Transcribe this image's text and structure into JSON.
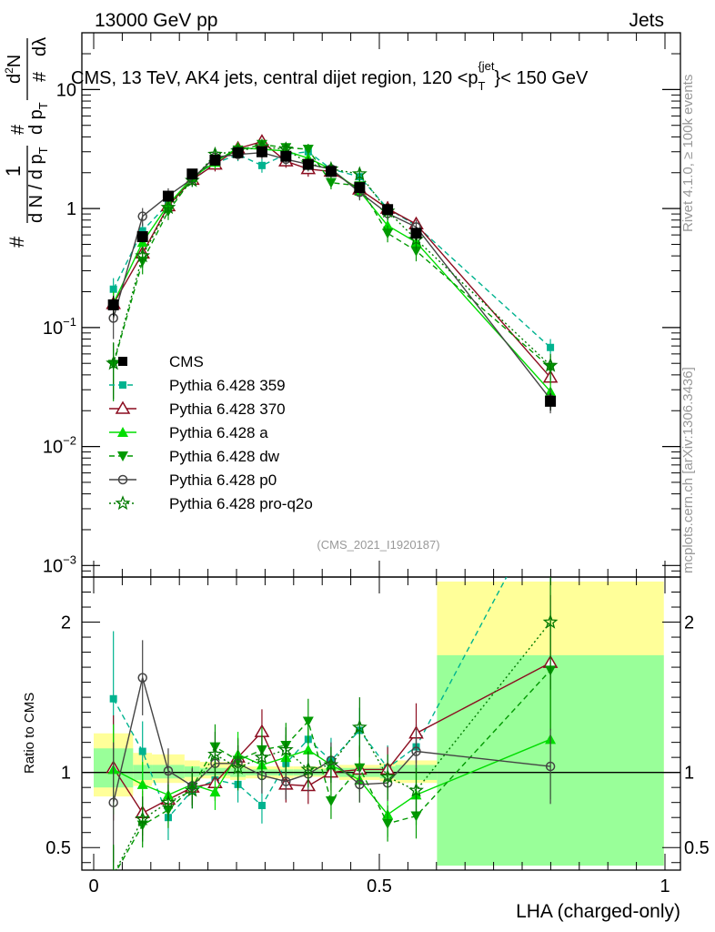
{
  "header": {
    "left": "13000 GeV pp",
    "right": "Jets"
  },
  "side_labels": {
    "rivet": "Rivet 4.1.0, ≥ 100k events",
    "mcplots": "mcplots.cern.ch [arXiv:1306.3436]"
  },
  "watermark": "(CMS_2021_I1920187)",
  "colors": {
    "cms": "#000000",
    "p359": "#00b38f",
    "p370": "#8b0c1f",
    "a": "#00dd00",
    "dw": "#009900",
    "p0": "#444444",
    "proq2o": "#007a00",
    "band_yellow": "#ffff99",
    "band_green": "#99ff99"
  },
  "chart_data": [
    {
      "type": "line",
      "panel": "main",
      "title": "CMS, 13 TeV, AK4 jets, central dijet region, 120 < p_T^{jet} < 150 GeV",
      "title_parts": {
        "main": "CMS, 13 TeV, AK4 jets, central dijet region, 120 <p",
        "sub": "T",
        "sup": "{jet",
        "tail": "}< 150 GeV"
      },
      "ylabel": "1/N dN/dp_T d^2N/dp_T dλ",
      "ylabel_parts": {
        "hash": "#",
        "one": "1",
        "dn": "d N / d p",
        "t": "T",
        "d2n": "d",
        "sq": "2",
        "n": "N",
        "dp": "d p",
        "dl": "dλ"
      },
      "yscale": "log",
      "ylim": [
        0.0008,
        30
      ],
      "x": [
        0.0345,
        0.0855,
        0.1305,
        0.1725,
        0.2125,
        0.2525,
        0.2945,
        0.3365,
        0.3755,
        0.4155,
        0.4655,
        0.5145,
        0.5645,
        0.7995
      ],
      "ytick_labels": [
        {
          "value": 0.001,
          "base": "10",
          "exp": "−3"
        },
        {
          "value": 0.01,
          "base": "10",
          "exp": "−2"
        },
        {
          "value": 0.1,
          "base": "10",
          "exp": "−1"
        },
        {
          "value": 1,
          "base": "1",
          "exp": ""
        },
        {
          "value": 10,
          "base": "10",
          "exp": ""
        }
      ],
      "legend": {
        "position": "center-left"
      },
      "series": [
        {
          "name": "CMS",
          "key": "cms",
          "style": "none",
          "marker": "square",
          "values": [
            0.155,
            0.58,
            1.27,
            1.95,
            2.55,
            2.95,
            3.0,
            2.75,
            2.35,
            2.05,
            1.5,
            0.98,
            0.62,
            0.024
          ],
          "errors": [
            0.03,
            0.06,
            0.1,
            0.15,
            0.2,
            0.2,
            0.2,
            0.2,
            0.2,
            0.15,
            0.15,
            0.1,
            0.08,
            0.004
          ]
        },
        {
          "name": "Pythia 6.428 359",
          "key": "p359",
          "style": "dashed",
          "marker": "filled-square-small",
          "values": [
            0.21,
            0.65,
            1.1,
            1.72,
            2.4,
            2.85,
            2.3,
            2.85,
            3.0,
            2.15,
            1.85,
            1.0,
            0.72,
            0.068
          ],
          "errors": [
            0.05,
            0.1,
            0.15,
            0.2,
            0.3,
            0.35,
            0.3,
            0.35,
            0.35,
            0.25,
            0.25,
            0.15,
            0.1,
            0.012
          ]
        },
        {
          "name": "Pythia 6.428 370",
          "key": "p370",
          "style": "solid",
          "marker": "open-triangle",
          "values": [
            0.158,
            0.42,
            1.05,
            1.75,
            2.35,
            3.2,
            3.65,
            2.5,
            2.15,
            2.05,
            1.45,
            1.0,
            0.74,
            0.038
          ],
          "errors": [
            0.04,
            0.08,
            0.15,
            0.2,
            0.3,
            0.35,
            0.4,
            0.3,
            0.3,
            0.25,
            0.2,
            0.15,
            0.1,
            0.01
          ]
        },
        {
          "name": "Pythia 6.428 a",
          "key": "a",
          "style": "solid",
          "marker": "filled-triangle",
          "values": [
            0.16,
            0.52,
            1.08,
            1.82,
            2.45,
            3.25,
            3.15,
            3.05,
            2.65,
            2.15,
            1.4,
            0.72,
            0.52,
            0.029
          ],
          "errors": [
            0.04,
            0.1,
            0.15,
            0.2,
            0.3,
            0.35,
            0.35,
            0.35,
            0.3,
            0.25,
            0.2,
            0.12,
            0.1,
            0.009
          ]
        },
        {
          "name": "Pythia 6.428 dw",
          "key": "dw",
          "style": "dashed",
          "marker": "filled-triangle-down",
          "values": [
            0.049,
            0.36,
            0.95,
            1.78,
            2.55,
            3.1,
            3.45,
            3.25,
            3.15,
            1.65,
            1.55,
            0.62,
            0.44,
            0.046
          ],
          "errors": [
            0.025,
            0.08,
            0.15,
            0.2,
            0.3,
            0.35,
            0.4,
            0.35,
            0.35,
            0.2,
            0.2,
            0.1,
            0.08,
            0.012
          ]
        },
        {
          "name": "Pythia 6.428 p0",
          "key": "p0",
          "style": "solid",
          "marker": "open-circle",
          "values": [
            0.12,
            0.86,
            1.28,
            1.78,
            2.7,
            2.85,
            2.95,
            2.6,
            2.35,
            2.15,
            1.37,
            0.91,
            0.7,
            0.025
          ],
          "errors": [
            0.04,
            0.15,
            0.2,
            0.2,
            0.3,
            0.3,
            0.35,
            0.3,
            0.3,
            0.25,
            0.2,
            0.12,
            0.1,
            0.006
          ]
        },
        {
          "name": "Pythia 6.428 pro-q2o",
          "key": "proq2o",
          "style": "dotted",
          "marker": "star",
          "values": [
            0.05,
            0.4,
            1.02,
            1.72,
            2.85,
            3.05,
            3.3,
            3.15,
            2.4,
            2.15,
            1.95,
            0.95,
            0.55,
            0.048
          ],
          "errors": [
            0.025,
            0.08,
            0.15,
            0.2,
            0.3,
            0.35,
            0.4,
            0.35,
            0.3,
            0.25,
            0.25,
            0.15,
            0.1,
            0.012
          ]
        }
      ]
    },
    {
      "type": "line",
      "panel": "ratio",
      "ylabel": "Ratio to CMS",
      "xlabel": "LHA (charged-only)",
      "ylim": [
        0.35,
        2.3
      ],
      "xlim": [
        -0.01,
        1.0
      ],
      "xticks": [
        {
          "value": 0,
          "label": "0"
        },
        {
          "value": 0.5,
          "label": "0.5"
        },
        {
          "value": 1,
          "label": "1"
        }
      ],
      "yticks": [
        {
          "value": 0.5,
          "label": "0.5"
        },
        {
          "value": 1,
          "label": "1"
        },
        {
          "value": 2,
          "label": "2"
        }
      ],
      "bins": [
        [
          0.0,
          0.069
        ],
        [
          0.069,
          0.102
        ],
        [
          0.102,
          0.159
        ],
        [
          0.159,
          0.186
        ],
        [
          0.186,
          0.239
        ],
        [
          0.239,
          0.266
        ],
        [
          0.266,
          0.323
        ],
        [
          0.323,
          0.35
        ],
        [
          0.35,
          0.401
        ],
        [
          0.401,
          0.43
        ],
        [
          0.43,
          0.501
        ],
        [
          0.501,
          0.528
        ],
        [
          0.528,
          0.601
        ],
        [
          0.601,
          0.998
        ]
      ],
      "band_yellow": [
        [
          0.84,
          1.26
        ],
        [
          0.91,
          1.13
        ],
        [
          0.93,
          1.12
        ],
        [
          0.94,
          1.08
        ],
        [
          0.96,
          1.07
        ],
        [
          0.95,
          1.06
        ],
        [
          0.96,
          1.04
        ],
        [
          0.96,
          1.04
        ],
        [
          0.97,
          1.04
        ],
        [
          0.97,
          1.03
        ],
        [
          0.95,
          1.05
        ],
        [
          0.94,
          1.06
        ],
        [
          0.93,
          1.08
        ],
        [
          0.38,
          2.27
        ]
      ],
      "band_green": [
        [
          0.9,
          1.16
        ],
        [
          0.95,
          1.05
        ],
        [
          0.96,
          1.05
        ],
        [
          0.97,
          1.04
        ],
        [
          0.98,
          1.03
        ],
        [
          0.97,
          1.03
        ],
        [
          0.98,
          1.02
        ],
        [
          0.98,
          1.02
        ],
        [
          0.98,
          1.02
        ],
        [
          0.98,
          1.02
        ],
        [
          0.97,
          1.03
        ],
        [
          0.96,
          1.04
        ],
        [
          0.95,
          1.05
        ],
        [
          0.38,
          1.78
        ]
      ],
      "series": [
        {
          "key": "p359",
          "values": [
            1.49,
            1.14,
            0.7,
            0.88,
            0.95,
            0.92,
            0.78,
            1.06,
            1.22,
            1.08,
            1.28,
            1.03,
            1.17,
            2.85
          ],
          "errors": [
            0.45,
            0.2,
            0.15,
            0.12,
            0.12,
            0.12,
            0.12,
            0.12,
            0.15,
            0.15,
            0.15,
            0.15,
            0.15,
            0.5
          ]
        },
        {
          "key": "p370",
          "values": [
            1.03,
            0.73,
            0.82,
            0.9,
            0.93,
            1.1,
            1.27,
            0.92,
            0.91,
            1.0,
            1.02,
            1.02,
            1.26,
            1.73
          ],
          "errors": [
            0.35,
            0.15,
            0.12,
            0.12,
            0.12,
            0.12,
            0.15,
            0.12,
            0.12,
            0.12,
            0.15,
            0.15,
            0.2,
            0.45
          ]
        },
        {
          "key": "a",
          "values": [
            1.02,
            0.92,
            0.85,
            0.92,
            0.87,
            1.12,
            1.05,
            1.1,
            1.15,
            1.05,
            0.95,
            0.72,
            0.85,
            1.22
          ],
          "errors": [
            0.3,
            0.15,
            0.12,
            0.12,
            0.12,
            0.15,
            0.15,
            0.15,
            0.15,
            0.12,
            0.15,
            0.15,
            0.2,
            0.4
          ]
        },
        {
          "key": "dw",
          "values": [
            0.31,
            0.65,
            0.75,
            0.9,
            1.17,
            1.08,
            1.15,
            1.18,
            1.34,
            0.81,
            1.03,
            0.66,
            0.71,
            1.68
          ],
          "errors": [
            0.2,
            0.15,
            0.12,
            0.12,
            0.15,
            0.15,
            0.15,
            0.15,
            0.15,
            0.12,
            0.15,
            0.12,
            0.15,
            0.4
          ]
        },
        {
          "key": "p0",
          "values": [
            0.8,
            1.63,
            1.01,
            0.91,
            1.06,
            1.06,
            0.98,
            0.94,
            0.99,
            1.08,
            0.92,
            0.93,
            1.14,
            1.04
          ],
          "errors": [
            0.4,
            0.25,
            0.15,
            0.12,
            0.12,
            0.12,
            0.12,
            0.12,
            0.12,
            0.12,
            0.12,
            0.12,
            0.15,
            0.25
          ]
        },
        {
          "key": "proq2o",
          "values": [
            0.32,
            0.69,
            0.8,
            0.88,
            1.12,
            1.03,
            1.1,
            1.15,
            1.02,
            1.05,
            1.3,
            0.97,
            0.88,
            2.0
          ],
          "errors": [
            0.2,
            0.15,
            0.12,
            0.12,
            0.15,
            0.15,
            0.15,
            0.15,
            0.12,
            0.12,
            0.2,
            0.15,
            0.15,
            0.45
          ]
        }
      ]
    }
  ]
}
